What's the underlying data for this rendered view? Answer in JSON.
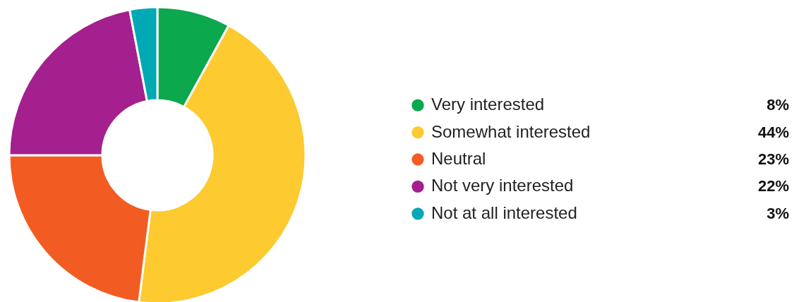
{
  "chart_data": {
    "type": "donut",
    "categories": [
      "Very interested",
      "Somewhat interested",
      "Neutral",
      "Not very interested",
      "Not at all interested"
    ],
    "values": [
      8,
      44,
      23,
      22,
      3
    ],
    "value_labels": [
      "8%",
      "44%",
      "23%",
      "22%",
      "3%"
    ],
    "colors": [
      "#0ba84e",
      "#fdca2f",
      "#f25c22",
      "#a4208e",
      "#00a9b4"
    ],
    "legend": "right"
  }
}
